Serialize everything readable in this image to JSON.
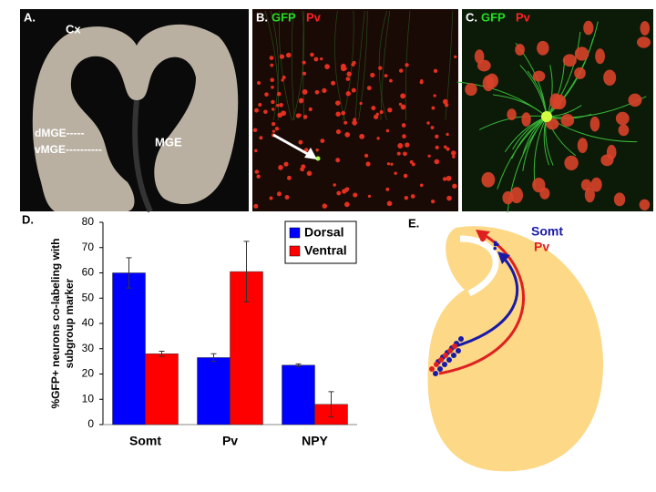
{
  "panels": {
    "a": {
      "letter": "A.",
      "labels": [
        "Cx",
        "dMGE-----",
        "vMGE----------",
        "MGE"
      ]
    },
    "b": {
      "letter": "B.",
      "green": "GFP",
      "red": "Pv"
    },
    "c": {
      "letter": "C.",
      "green": "GFP",
      "red": "Pv"
    },
    "d": {
      "letter": "D."
    },
    "e": {
      "letter": "E.",
      "blue": "Somt",
      "red": "Pv"
    }
  },
  "chart_data": {
    "type": "bar",
    "ylabel": [
      "%GFP+ neurons co-labeling with",
      "subgroup marker"
    ],
    "categories": [
      "Somt",
      "Pv",
      "NPY"
    ],
    "series": [
      {
        "name": "Dorsal",
        "color": "#0000ff",
        "values": [
          60,
          26.5,
          23.5
        ],
        "errors": [
          6,
          1.5,
          0.5
        ]
      },
      {
        "name": "Ventral",
        "color": "#ff0000",
        "values": [
          28,
          60.5,
          8
        ],
        "errors": [
          1,
          12,
          5
        ]
      }
    ],
    "ylim": [
      0,
      80
    ],
    "yticks": [
      0,
      10,
      20,
      30,
      40,
      50,
      60,
      70,
      80
    ],
    "grid": false
  }
}
